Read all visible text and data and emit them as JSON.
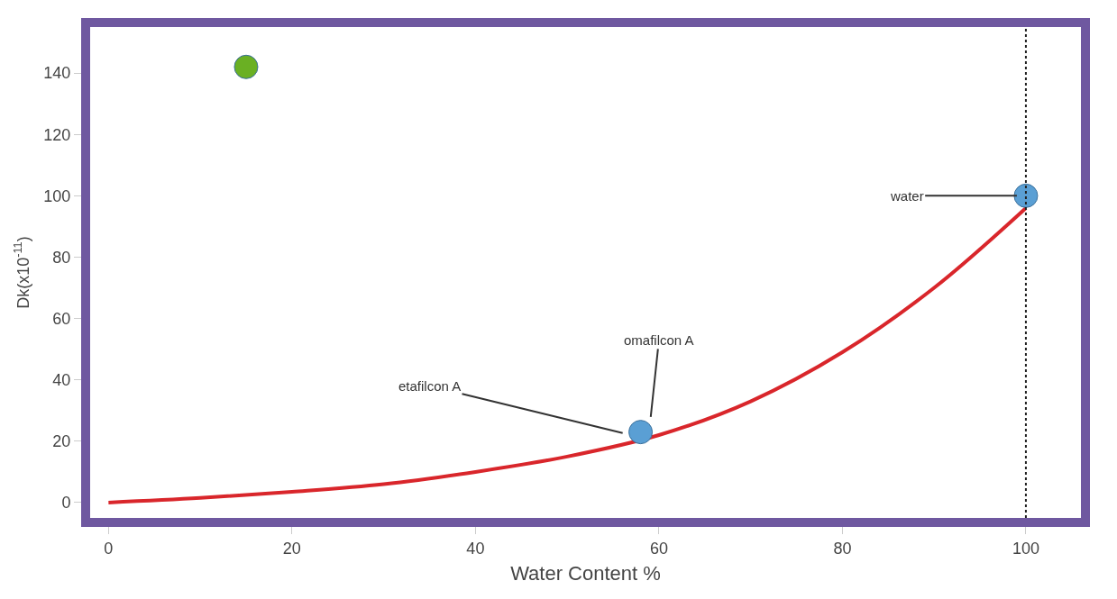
{
  "chart_data": {
    "type": "line",
    "xlabel": "Water Content %",
    "ylabel": "Dk(x10$^{-11}$)",
    "xlim": [
      -2,
      106
    ],
    "xticks": [
      0,
      20,
      40,
      60,
      80,
      100
    ],
    "ylim": [
      -5,
      155
    ],
    "yticks": [
      0,
      20,
      40,
      60,
      80,
      100,
      120,
      140
    ],
    "series": [
      {
        "color": "#d9262b",
        "marker": "none",
        "line_style": "solid",
        "x": [
          0,
          10,
          20,
          30,
          40,
          50,
          60,
          70,
          80,
          90,
          100
        ],
        "values": [
          0,
          1.5,
          3.5,
          6,
          10,
          15,
          22,
          33,
          49,
          70,
          96
        ]
      },
      {
        "type": "scatter",
        "marker": "circle",
        "x": [
          15,
          58,
          100
        ],
        "values": [
          142,
          23,
          100
        ],
        "colors": [
          "#6ab023",
          "#5a9fd4",
          "#5a9fd4"
        ]
      }
    ],
    "ref_lines": [
      {
        "axis": "x",
        "value": 100,
        "color": "#222222",
        "line_style": "dotted"
      }
    ],
    "annotations": [
      {
        "text": "etafilcon A",
        "x": 57,
        "y": 22
      },
      {
        "text": "omafilcon A",
        "x": 59,
        "y": 25
      },
      {
        "text": "water",
        "x": 100,
        "y": 100
      }
    ]
  }
}
